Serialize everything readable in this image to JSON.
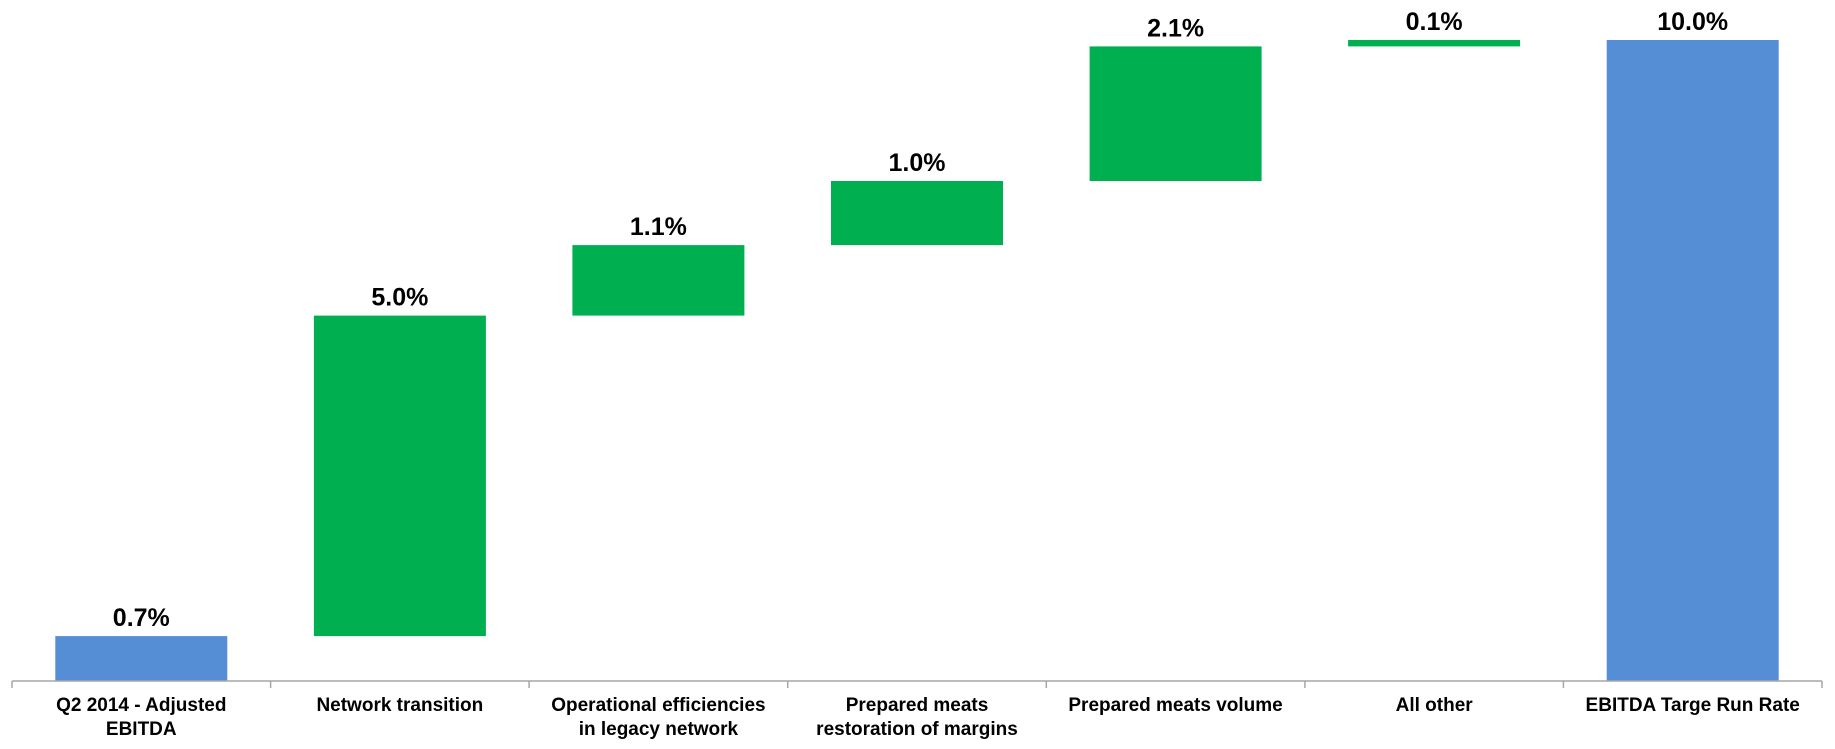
{
  "chart_data": {
    "type": "bar",
    "subtype": "waterfall",
    "title": "",
    "xlabel": "",
    "ylabel": "",
    "ylim": [
      0,
      10.0
    ],
    "grid": false,
    "legend": "none",
    "categories": [
      [
        "Q2 2014 - Adjusted",
        "EBITDA"
      ],
      [
        "Network transition"
      ],
      [
        "Operational efficiencies",
        "in legacy network"
      ],
      [
        "Prepared meats",
        "restoration of margins"
      ],
      [
        "Prepared meats volume"
      ],
      [
        "All other"
      ],
      [
        "EBITDA Targe Run Rate"
      ]
    ],
    "values": [
      0.7,
      5.0,
      1.1,
      1.0,
      2.1,
      0.1,
      10.0
    ],
    "bar_kind": [
      "total",
      "increase",
      "increase",
      "increase",
      "increase",
      "increase",
      "total"
    ],
    "value_labels": [
      "0.7%",
      "5.0%",
      "1.1%",
      "1.0%",
      "2.1%",
      "0.1%",
      "10.0%"
    ],
    "colors": {
      "total": "#558ED5",
      "increase": "#00B050",
      "axis": "#A6A6A6"
    }
  }
}
